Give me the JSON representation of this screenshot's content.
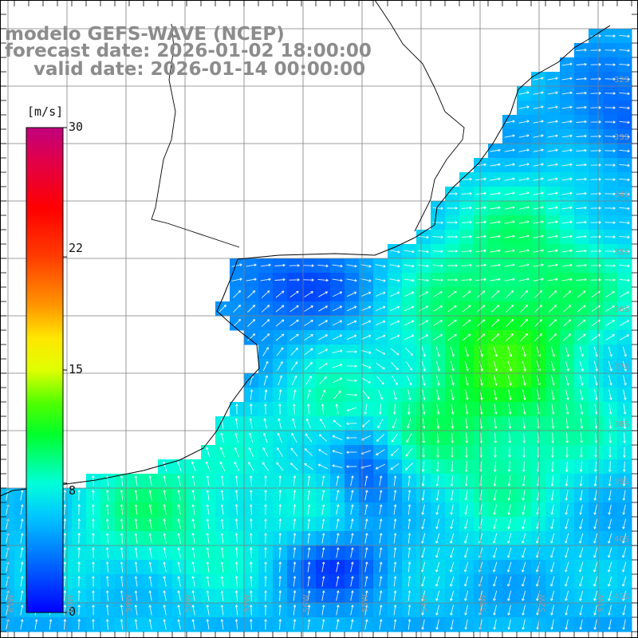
{
  "title": {
    "model": "modelo GEFS-WAVE (NCEP)",
    "forecast": "forecast date: 2026-01-02 18:00:00",
    "valid": "valid date: 2026-01-14 00:00:00"
  },
  "colorbar": {
    "unit": "[m/s]",
    "ticks": [
      "30",
      "22",
      "15",
      "8",
      "0"
    ],
    "tick_values": [
      30,
      22,
      15,
      8,
      0
    ],
    "min": 0,
    "max": 30,
    "stops": [
      {
        "v": 0,
        "c": "#0000ff"
      },
      {
        "v": 3,
        "c": "#0066ff"
      },
      {
        "v": 6,
        "c": "#00c8ff"
      },
      {
        "v": 8,
        "c": "#00ffd8"
      },
      {
        "v": 11,
        "c": "#00ff2a"
      },
      {
        "v": 13,
        "c": "#52ff00"
      },
      {
        "v": 15,
        "c": "#e0ff00"
      },
      {
        "v": 17,
        "c": "#ffe600"
      },
      {
        "v": 19,
        "c": "#ff9600"
      },
      {
        "v": 22,
        "c": "#ff3c00"
      },
      {
        "v": 25,
        "c": "#ff0000"
      },
      {
        "v": 28,
        "c": "#e0004a"
      },
      {
        "v": 30,
        "c": "#c0007e"
      }
    ]
  },
  "map": {
    "lat_labels": [
      "32S",
      "33S",
      "34S",
      "35S",
      "36S",
      "37S",
      "38S",
      "39S",
      "40S",
      "41S"
    ],
    "lon_labels": [
      "61W",
      "60W",
      "59W",
      "58W",
      "57W",
      "56W",
      "55W",
      "54W",
      "53W",
      "52W",
      "51W"
    ],
    "colors": {
      "land": "#ffffff",
      "grid": "#7f7f7f",
      "coast": "#000000",
      "arrows": "#ffffff"
    }
  }
}
